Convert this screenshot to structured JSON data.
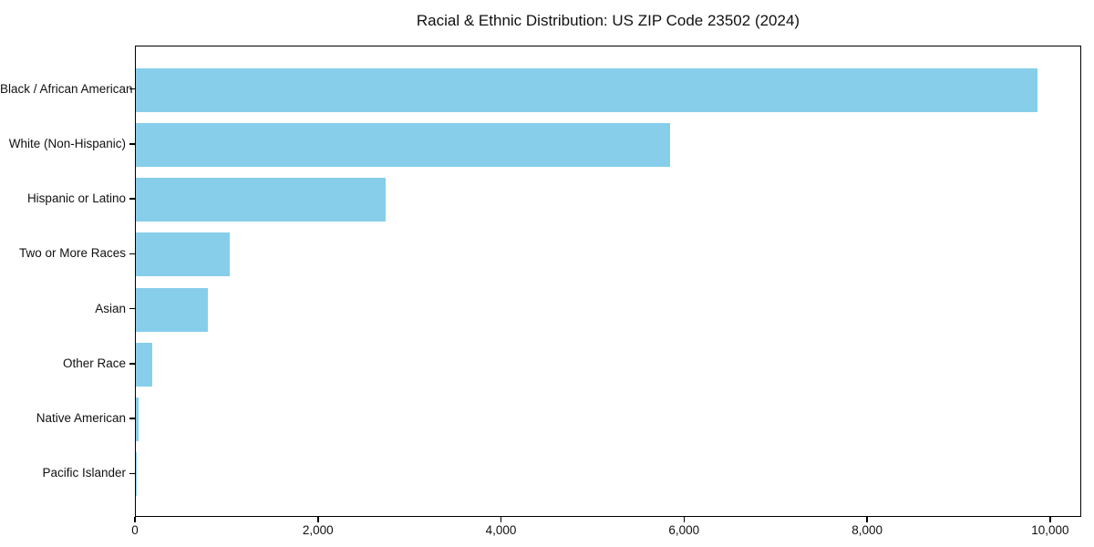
{
  "chart_data": {
    "type": "bar",
    "orientation": "horizontal",
    "title": "Racial & Ethnic Distribution: US ZIP Code 23502 (2024)",
    "categories": [
      "Black / African American",
      "White (Non-Hispanic)",
      "Hispanic or Latino",
      "Two or More Races",
      "Asian",
      "Other Race",
      "Native American",
      "Pacific Islander"
    ],
    "values": [
      9850,
      5840,
      2730,
      1025,
      785,
      180,
      25,
      8
    ],
    "xlabel": "",
    "ylabel": "",
    "xlim": [
      0,
      10340
    ],
    "x_ticks": [
      0,
      2000,
      4000,
      6000,
      8000,
      10000
    ],
    "x_tick_labels": [
      "0",
      "2,000",
      "4,000",
      "6,000",
      "8,000",
      "10,000"
    ],
    "grid": false,
    "legend": null,
    "bar_color": "#87CEEB",
    "axis_color": "#000000",
    "text_color": "#111111",
    "background_color": "#ffffff"
  }
}
